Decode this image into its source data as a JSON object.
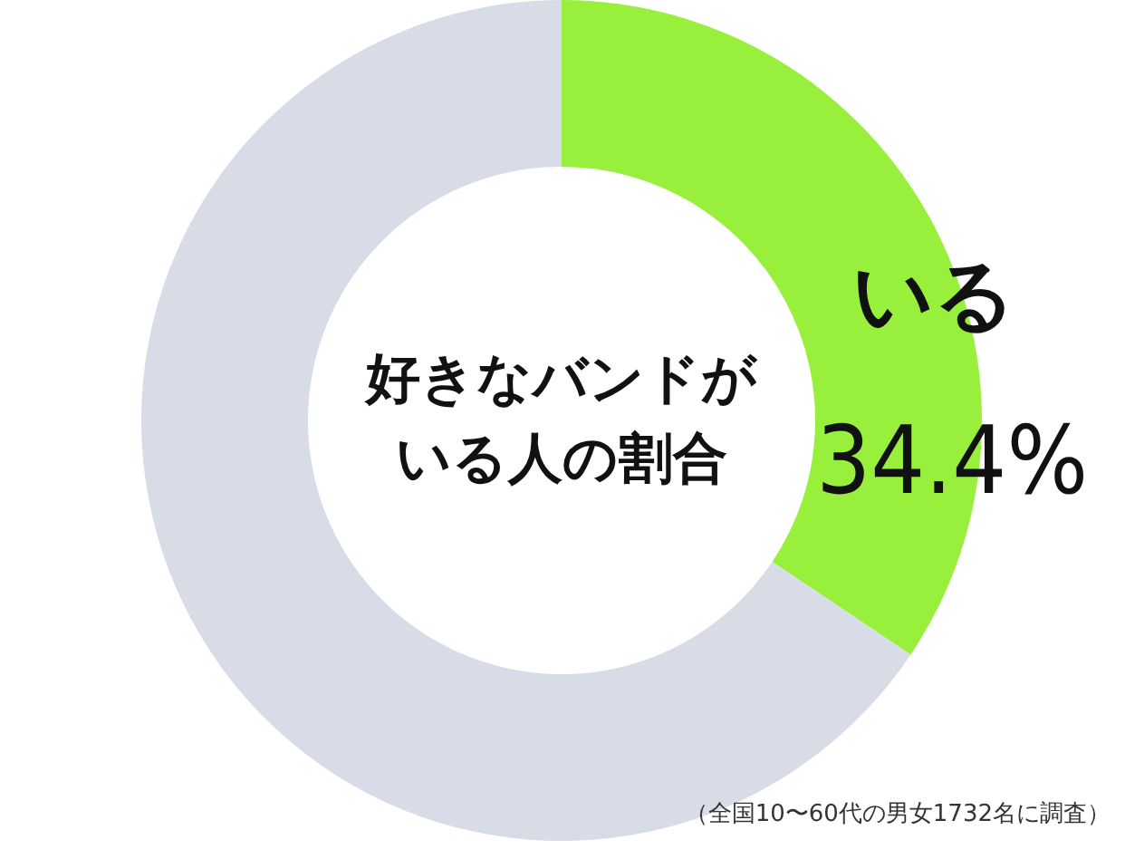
{
  "chart_data": {
    "type": "donut",
    "title": "好きなバンドがいる人の割合",
    "categories": [
      "いる",
      null
    ],
    "values": [
      34.4,
      65.6
    ],
    "colors": [
      "#99f03c",
      "#d8dce6"
    ],
    "value_labels": [
      "34.4%",
      null
    ],
    "annotations": [
      "（全国10〜60代の男女1732名に調査）"
    ]
  }
}
